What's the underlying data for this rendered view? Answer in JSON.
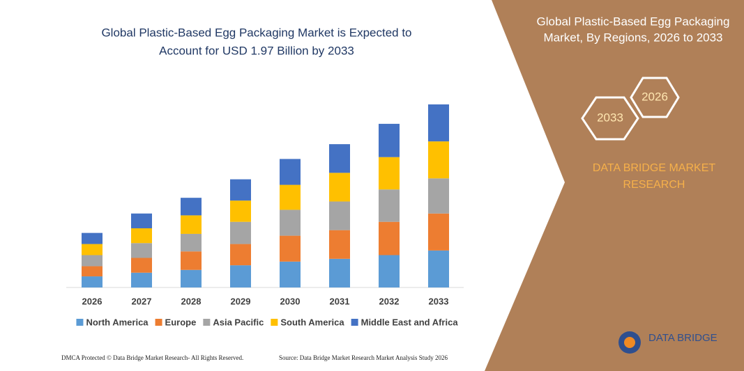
{
  "chart_data": {
    "type": "stacked_bar",
    "title": [
      "Global Plastic-Based Egg Packaging Market is Expected to",
      "Account for USD 1.97 Billion by 2033"
    ],
    "categories": [
      "2026",
      "2027",
      "2028",
      "2029",
      "2030",
      "2031",
      "2032",
      "2033"
    ],
    "series": [
      {
        "name": "North America",
        "color": "#5b9bd5",
        "values": [
          0.12,
          0.16,
          0.19,
          0.24,
          0.28,
          0.31,
          0.35,
          0.4
        ]
      },
      {
        "name": "Europe",
        "color": "#ed7d31",
        "values": [
          0.11,
          0.16,
          0.2,
          0.23,
          0.28,
          0.31,
          0.36,
          0.4
        ]
      },
      {
        "name": "Asia Pacific",
        "color": "#a5a5a5",
        "values": [
          0.12,
          0.16,
          0.19,
          0.24,
          0.28,
          0.31,
          0.35,
          0.38
        ]
      },
      {
        "name": "South America",
        "color": "#ffc000",
        "values": [
          0.12,
          0.16,
          0.2,
          0.23,
          0.27,
          0.31,
          0.35,
          0.4
        ]
      },
      {
        "name": "Middle East and Africa",
        "color": "#4472c4",
        "values": [
          0.12,
          0.16,
          0.19,
          0.23,
          0.28,
          0.31,
          0.36,
          0.4
        ]
      }
    ],
    "legend": "bottom"
  },
  "side_panel": {
    "title": [
      "Global Plastic-Based Egg Packaging",
      "Market, By Regions, 2026 to 2033"
    ],
    "hex_labels": [
      "2026",
      "2033"
    ],
    "brand": [
      "DATA BRIDGE MARKET",
      "RESEARCH"
    ]
  },
  "logo": "DATA BRIDGE",
  "footer": {
    "left": "DMCA Protected © Data Bridge Market Research- All Rights Reserved.",
    "right": "Source: Data Bridge Market Research Market Analysis Study 2026"
  }
}
